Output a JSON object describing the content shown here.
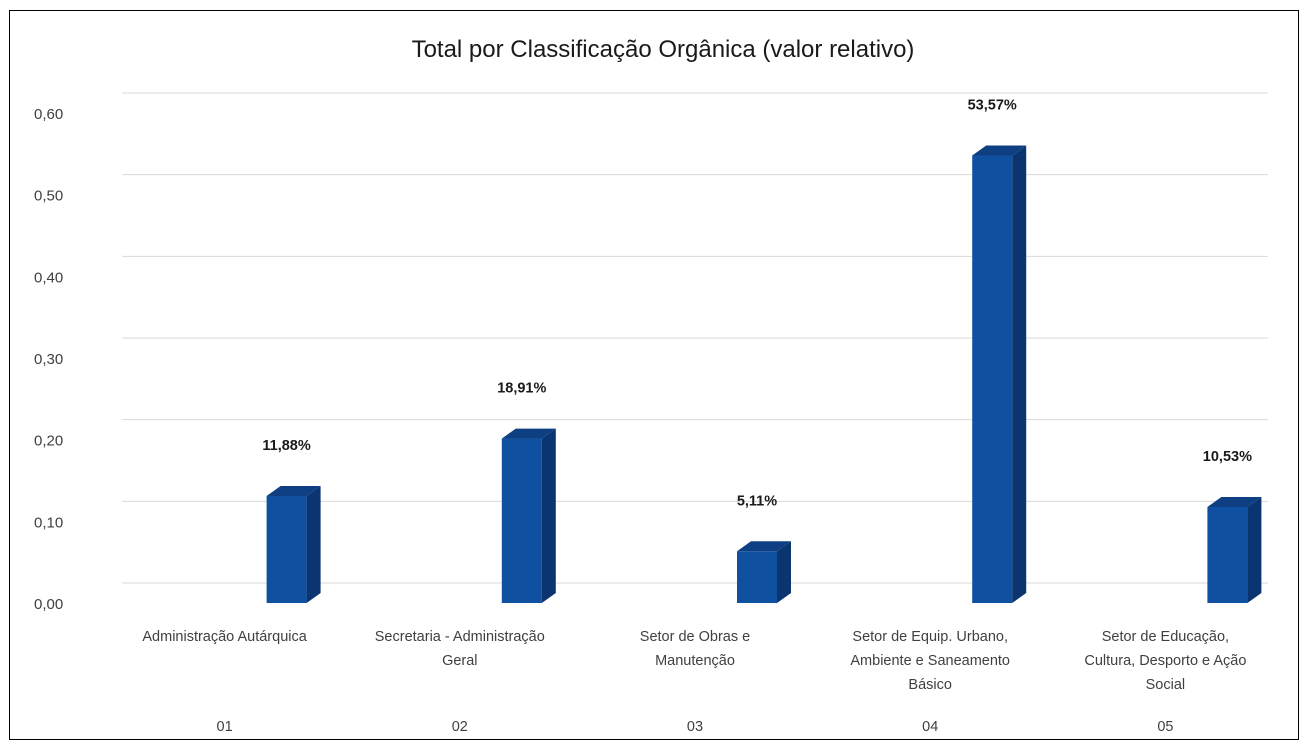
{
  "chart_data": {
    "type": "bar",
    "title": "Total por Classificação Orgânica (valor relativo)",
    "categories": [
      {
        "code": "01",
        "label_lines": [
          "Administração Autárquica"
        ]
      },
      {
        "code": "02",
        "label_lines": [
          "Secretaria - Administração",
          "Geral"
        ]
      },
      {
        "code": "03",
        "label_lines": [
          "Setor de Obras e",
          "Manutenção"
        ]
      },
      {
        "code": "04",
        "label_lines": [
          "Setor de Equip. Urbano,",
          "Ambiente e Saneamento",
          "Básico"
        ]
      },
      {
        "code": "05",
        "label_lines": [
          "Setor de Educação,",
          "Cultura, Desporto e Ação",
          "Social"
        ]
      }
    ],
    "values": [
      0.1188,
      0.1891,
      0.0511,
      0.5357,
      0.1053
    ],
    "data_labels": [
      "11,88%",
      "18,91%",
      "5,11%",
      "53,57%",
      "10,53%"
    ],
    "ylim": [
      0,
      0.6
    ],
    "yticks": [
      "0,00",
      "0,10",
      "0,20",
      "0,30",
      "0,40",
      "0,50",
      "0,60"
    ],
    "grid": true,
    "legend": "none",
    "colors": {
      "bar_front": "#1050a0",
      "bar_side": "#0a3570",
      "bar_top": "#0d3f82",
      "grid": "#d9d9d9"
    }
  }
}
